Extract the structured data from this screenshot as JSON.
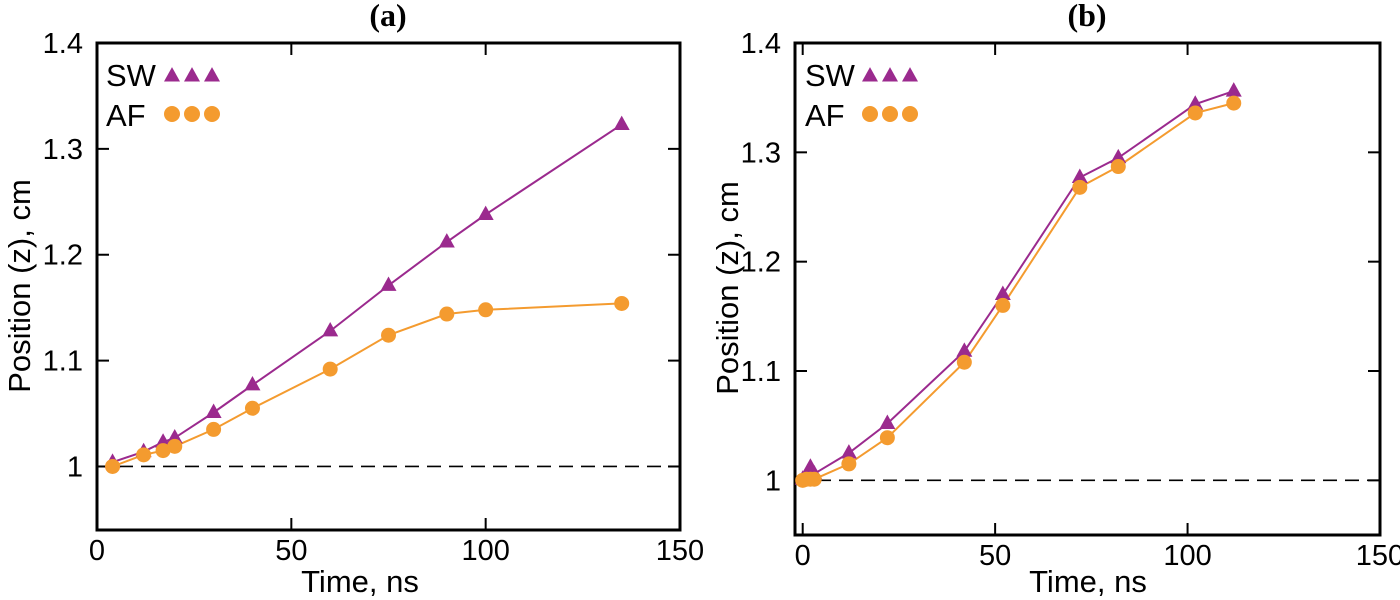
{
  "chart_data": [
    {
      "type": "line",
      "panel_label": "(a)",
      "xlabel": "Time, ns",
      "ylabel": "Position (z), cm",
      "xlim": [
        0,
        150
      ],
      "ylim": [
        0.94,
        1.4
      ],
      "xticks": [
        0,
        50,
        100,
        150
      ],
      "xtick_labels": [
        "0",
        "50",
        "100",
        "150"
      ],
      "yticks": [
        1.0,
        1.1,
        1.2,
        1.3,
        1.4
      ],
      "ytick_labels": [
        "1",
        "1.1",
        "1.2",
        "1.3",
        "1.4"
      ],
      "reference_line": 1.0,
      "legend_position": "top-left",
      "series": [
        {
          "name": "SW",
          "marker": "triangle",
          "color": "#9B2A8E",
          "x": [
            4,
            12,
            17,
            20,
            30,
            40,
            60,
            75,
            90,
            100,
            135
          ],
          "y": [
            1.004,
            1.014,
            1.023,
            1.027,
            1.051,
            1.077,
            1.128,
            1.171,
            1.212,
            1.238,
            1.323
          ]
        },
        {
          "name": "AF",
          "marker": "circle",
          "color": "#F49B2F",
          "x": [
            4,
            12,
            17,
            20,
            30,
            40,
            60,
            75,
            90,
            100,
            135
          ],
          "y": [
            1.0,
            1.011,
            1.015,
            1.019,
            1.035,
            1.055,
            1.092,
            1.124,
            1.144,
            1.148,
            1.154
          ]
        }
      ]
    },
    {
      "type": "line",
      "panel_label": "(b)",
      "xlabel": "Time, ns",
      "ylabel": "Position (z), cm",
      "xlim": [
        -2,
        150
      ],
      "ylim": [
        0.95,
        1.4
      ],
      "xticks": [
        0,
        50,
        100,
        150
      ],
      "xtick_labels": [
        "0",
        "50",
        "100",
        "150"
      ],
      "yticks": [
        1.0,
        1.1,
        1.2,
        1.3,
        1.4
      ],
      "ytick_labels": [
        "1",
        "1.1",
        "1.2",
        "1.3",
        "1.4"
      ],
      "reference_line": 1.0,
      "legend_position": "top-left",
      "series": [
        {
          "name": "SW",
          "marker": "triangle",
          "color": "#9B2A8E",
          "x": [
            0,
            1,
            2,
            3,
            12,
            22,
            42,
            52,
            72,
            82,
            102,
            112
          ],
          "y": [
            1.001,
            1.003,
            1.012,
            1.006,
            1.025,
            1.052,
            1.118,
            1.17,
            1.277,
            1.295,
            1.344,
            1.356
          ]
        },
        {
          "name": "AF",
          "marker": "circle",
          "color": "#F49B2F",
          "x": [
            0,
            1,
            2,
            3,
            12,
            22,
            42,
            52,
            72,
            82,
            102,
            112
          ],
          "y": [
            1.0,
            1.001,
            1.001,
            1.001,
            1.015,
            1.039,
            1.108,
            1.16,
            1.268,
            1.287,
            1.336,
            1.345
          ]
        }
      ]
    }
  ]
}
